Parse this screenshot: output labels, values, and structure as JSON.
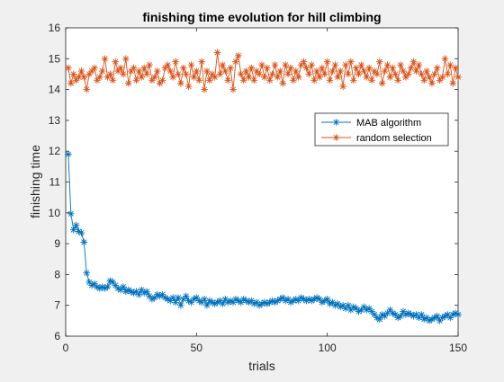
{
  "chart_data": {
    "type": "line",
    "title": "finishing time evolution for hill climbing",
    "xlabel": "trials",
    "ylabel": "finishing time",
    "xlim": [
      0,
      150
    ],
    "ylim": [
      6,
      16
    ],
    "xticks": [
      "0",
      "50",
      "100",
      "150"
    ],
    "yticks": [
      "6",
      "7",
      "8",
      "9",
      "10",
      "11",
      "12",
      "13",
      "14",
      "15",
      "16"
    ],
    "grid": false,
    "legend_position": "upper-right",
    "series": [
      {
        "name": "MAB algorithm",
        "color": "#0072BD",
        "marker": "asterisk",
        "x": [
          1,
          2,
          3,
          4,
          5,
          6,
          7,
          8,
          9,
          10,
          11,
          12,
          13,
          14,
          15,
          16,
          17,
          18,
          19,
          20,
          21,
          22,
          23,
          24,
          25,
          26,
          27,
          28,
          29,
          30,
          31,
          32,
          33,
          34,
          35,
          36,
          37,
          38,
          39,
          40,
          41,
          42,
          43,
          44,
          45,
          46,
          47,
          48,
          49,
          50,
          51,
          52,
          53,
          54,
          55,
          56,
          57,
          58,
          59,
          60,
          61,
          62,
          63,
          64,
          65,
          66,
          67,
          68,
          69,
          70,
          71,
          72,
          73,
          74,
          75,
          76,
          77,
          78,
          79,
          80,
          81,
          82,
          83,
          84,
          85,
          86,
          87,
          88,
          89,
          90,
          91,
          92,
          93,
          94,
          95,
          96,
          97,
          98,
          99,
          100,
          101,
          102,
          103,
          104,
          105,
          106,
          107,
          108,
          109,
          110,
          111,
          112,
          113,
          114,
          115,
          116,
          117,
          118,
          119,
          120,
          121,
          122,
          123,
          124,
          125,
          126,
          127,
          128,
          129,
          130,
          131,
          132,
          133,
          134,
          135,
          136,
          137,
          138,
          139,
          140,
          141,
          142,
          143,
          144,
          145,
          146,
          147,
          148,
          149,
          150
        ],
        "y": [
          11.9,
          9.97,
          9.45,
          9.6,
          9.4,
          9.35,
          9.05,
          8.05,
          7.75,
          7.65,
          7.7,
          7.6,
          7.55,
          7.6,
          7.55,
          7.6,
          7.8,
          7.75,
          7.65,
          7.55,
          7.5,
          7.6,
          7.45,
          7.5,
          7.45,
          7.4,
          7.45,
          7.35,
          7.5,
          7.4,
          7.45,
          7.3,
          7.2,
          7.25,
          7.35,
          7.3,
          7.35,
          7.25,
          7.2,
          7.15,
          7.25,
          7.1,
          7.25,
          7.0,
          7.2,
          7.3,
          7.15,
          7.1,
          7.2,
          7.25,
          7.15,
          7.1,
          7.2,
          7.0,
          7.15,
          7.1,
          7.05,
          7.1,
          7.15,
          7.05,
          7.2,
          7.1,
          7.15,
          7.1,
          7.2,
          7.15,
          7.1,
          7.2,
          7.15,
          7.1,
          7.15,
          7.05,
          7.1,
          7.0,
          7.05,
          7.1,
          7.05,
          7.1,
          7.15,
          7.1,
          7.15,
          7.2,
          7.25,
          7.15,
          7.2,
          7.1,
          7.15,
          7.2,
          7.15,
          7.25,
          7.2,
          7.15,
          7.2,
          7.15,
          7.2,
          7.25,
          7.2,
          7.1,
          7.15,
          7.2,
          7.05,
          7.1,
          7.0,
          7.05,
          6.95,
          7.0,
          6.9,
          7.0,
          6.85,
          6.95,
          6.9,
          6.8,
          6.85,
          6.95,
          6.85,
          6.9,
          6.8,
          6.7,
          6.6,
          6.55,
          6.7,
          6.65,
          6.75,
          6.85,
          6.75,
          6.7,
          6.6,
          6.65,
          6.8,
          6.7,
          6.75,
          6.7,
          6.65,
          6.7,
          6.6,
          6.7,
          6.55,
          6.6,
          6.5,
          6.55,
          6.6,
          6.65,
          6.5,
          6.6,
          6.65,
          6.7,
          6.6,
          6.7,
          6.75,
          6.7
        ]
      },
      {
        "name": "random selection",
        "color": "#D95319",
        "marker": "asterisk",
        "x": [
          1,
          2,
          3,
          4,
          5,
          6,
          7,
          8,
          9,
          10,
          11,
          12,
          13,
          14,
          15,
          16,
          17,
          18,
          19,
          20,
          21,
          22,
          23,
          24,
          25,
          26,
          27,
          28,
          29,
          30,
          31,
          32,
          33,
          34,
          35,
          36,
          37,
          38,
          39,
          40,
          41,
          42,
          43,
          44,
          45,
          46,
          47,
          48,
          49,
          50,
          51,
          52,
          53,
          54,
          55,
          56,
          57,
          58,
          59,
          60,
          61,
          62,
          63,
          64,
          65,
          66,
          67,
          68,
          69,
          70,
          71,
          72,
          73,
          74,
          75,
          76,
          77,
          78,
          79,
          80,
          81,
          82,
          83,
          84,
          85,
          86,
          87,
          88,
          89,
          90,
          91,
          92,
          93,
          94,
          95,
          96,
          97,
          98,
          99,
          100,
          101,
          102,
          103,
          104,
          105,
          106,
          107,
          108,
          109,
          110,
          111,
          112,
          113,
          114,
          115,
          116,
          117,
          118,
          119,
          120,
          121,
          122,
          123,
          124,
          125,
          126,
          127,
          128,
          129,
          130,
          131,
          132,
          133,
          134,
          135,
          136,
          137,
          138,
          139,
          140,
          141,
          142,
          143,
          144,
          145,
          146,
          147,
          148,
          149,
          150
        ],
        "y": [
          14.7,
          14.2,
          14.5,
          14.3,
          14.4,
          14.6,
          14.4,
          14.0,
          14.5,
          14.6,
          14.7,
          14.3,
          14.4,
          14.6,
          15.0,
          14.4,
          14.5,
          14.3,
          14.9,
          14.6,
          14.7,
          14.5,
          15.0,
          14.2,
          14.6,
          14.7,
          14.3,
          14.6,
          14.4,
          14.7,
          14.5,
          14.8,
          14.3,
          14.4,
          14.6,
          14.2,
          14.3,
          14.7,
          14.8,
          14.6,
          14.4,
          14.9,
          14.5,
          14.2,
          14.7,
          14.5,
          14.1,
          14.8,
          14.4,
          14.6,
          14.3,
          14.9,
          14.0,
          14.6,
          14.3,
          14.5,
          14.4,
          15.2,
          14.5,
          14.8,
          14.6,
          14.3,
          14.7,
          14.0,
          14.9,
          15.1,
          14.5,
          14.3,
          14.6,
          14.4,
          14.7,
          14.3,
          14.6,
          14.5,
          14.8,
          14.4,
          14.7,
          14.3,
          14.5,
          14.8,
          14.4,
          14.6,
          14.2,
          14.8,
          14.5,
          14.7,
          14.3,
          14.6,
          14.4,
          14.8,
          14.9,
          14.7,
          14.5,
          14.8,
          14.3,
          14.6,
          14.4,
          14.7,
          14.5,
          14.9,
          14.3,
          14.6,
          14.8,
          14.4,
          14.6,
          14.1,
          14.8,
          14.5,
          14.9,
          14.3,
          14.7,
          14.5,
          14.8,
          14.6,
          14.4,
          14.7,
          14.3,
          14.6,
          14.5,
          14.9,
          14.2,
          14.6,
          14.8,
          14.4,
          14.7,
          14.5,
          14.3,
          14.8,
          14.6,
          14.4,
          14.5,
          14.7,
          14.9,
          14.6,
          14.8,
          14.5,
          14.3,
          14.6,
          14.4,
          14.2,
          14.5,
          14.7,
          14.3,
          14.4,
          15.0,
          14.5,
          14.8,
          14.2,
          14.7,
          14.4
        ]
      }
    ]
  }
}
